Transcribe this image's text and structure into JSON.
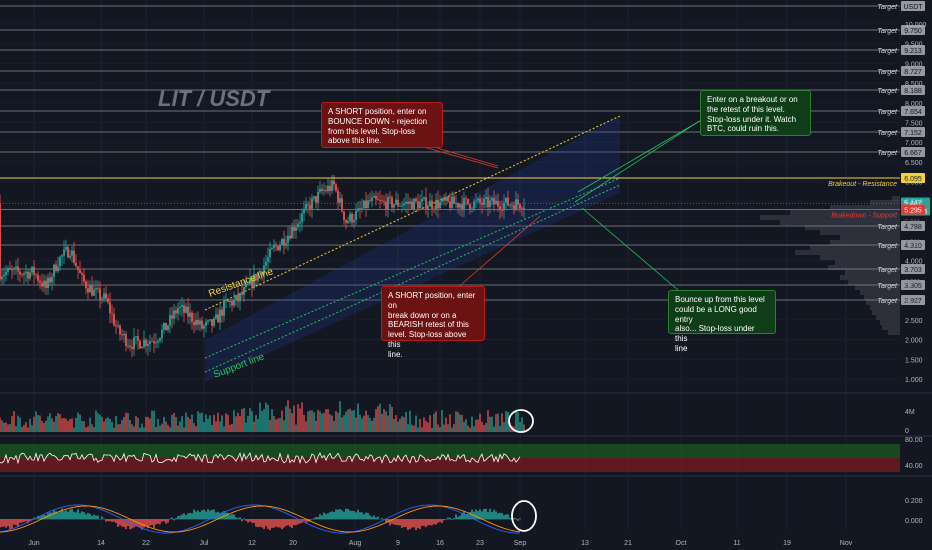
{
  "chart_data": {
    "type": "candlestick",
    "symbol_title": "LIT / USDT",
    "x_ticks": [
      "Jun",
      "14",
      "22",
      "Jul",
      "12",
      "20",
      "Aug",
      "9",
      "16",
      "23",
      "Sep",
      "13",
      "21",
      "Oct",
      "11",
      "19",
      "Nov"
    ],
    "price_axis": {
      "ticks": [
        "10.000",
        "9.500",
        "9.000",
        "8.500",
        "8.000",
        "7.500",
        "7.000",
        "6.500",
        "6.000",
        "5.500",
        "5.000",
        "4.500",
        "4.000",
        "3.500",
        "3.000",
        "2.500",
        "2.000",
        "1.500",
        "1.000"
      ],
      "top_badge": "USDT",
      "last_price": "5.447",
      "countdown": "04:46:26"
    },
    "targets": [
      {
        "label": "Target",
        "value": null
      },
      {
        "label": "Target",
        "value": "9.750"
      },
      {
        "label": "Target",
        "value": "9.213"
      },
      {
        "label": "Target",
        "value": "8.727"
      },
      {
        "label": "Target",
        "value": "8.188"
      },
      {
        "label": "Target",
        "value": "7.654"
      },
      {
        "label": "Target",
        "value": "7.152"
      },
      {
        "label": "Target",
        "value": "6.667"
      },
      {
        "label": "Target",
        "value": "4.788"
      },
      {
        "label": "Target",
        "value": "4.310"
      },
      {
        "label": "Target",
        "value": "3.703"
      },
      {
        "label": "Target",
        "value": "3.305"
      },
      {
        "label": "Target",
        "value": "2.927"
      }
    ],
    "levels": {
      "resistance": {
        "label": "Brakeout - Resistance",
        "value": "6.095",
        "color": "#f5d238"
      },
      "support": {
        "label": "Brakedown - Support",
        "value": "5.295",
        "color": "#e53935"
      }
    },
    "trendlines": {
      "resistance_label": "Resistance line",
      "support_label": "Support line"
    },
    "volume_axis": [
      "4M",
      "0"
    ],
    "rsi_axis": [
      "80.00",
      "40.00"
    ],
    "macd_axis": [
      "0.200",
      "0.000"
    ],
    "colors": {
      "up": "#26a69a",
      "down": "#ef5350",
      "background": "#131722"
    }
  },
  "annotations": [
    {
      "text": "A SHORT position, enter on\nBOUNCE DOWN - rejection\nfrom this level. Stop-loss\nabove this line.",
      "style": "red"
    },
    {
      "text": "Enter on a breakout or on\nthe retest of this level.\nStop-loss under it. Watch\nBTC, could ruin this.",
      "style": "green"
    },
    {
      "text": "A SHORT position, enter on\nbreak down or on a\nBEARISH retest of this\nlevel. Stop-loss above this\nline.",
      "style": "red"
    },
    {
      "text": "Bounce up from this level\ncould be a LONG good entry\nalso... Stop-loss under this\nline",
      "style": "green"
    }
  ]
}
